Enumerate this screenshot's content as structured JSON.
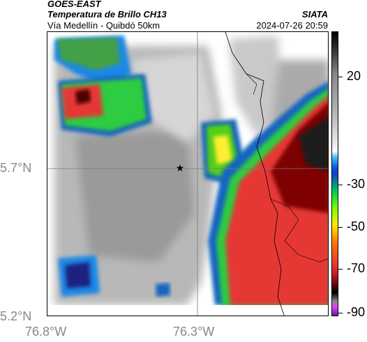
{
  "header": {
    "satellite": "GOES-EAST",
    "product": "Temperatura de Brillo CH13",
    "route": "Vía Medellín - Quibdó 50km",
    "source": "SIATA",
    "datetime": "2024-07-26 20:59"
  },
  "axes": {
    "lat_labels": [
      "5.7°N",
      "5.2°N"
    ],
    "lon_labels": [
      "76.8°W",
      "76.3°W"
    ]
  },
  "colorbar": {
    "ticks": [
      "20",
      "-30",
      "-50",
      "-70",
      "-90"
    ]
  }
}
